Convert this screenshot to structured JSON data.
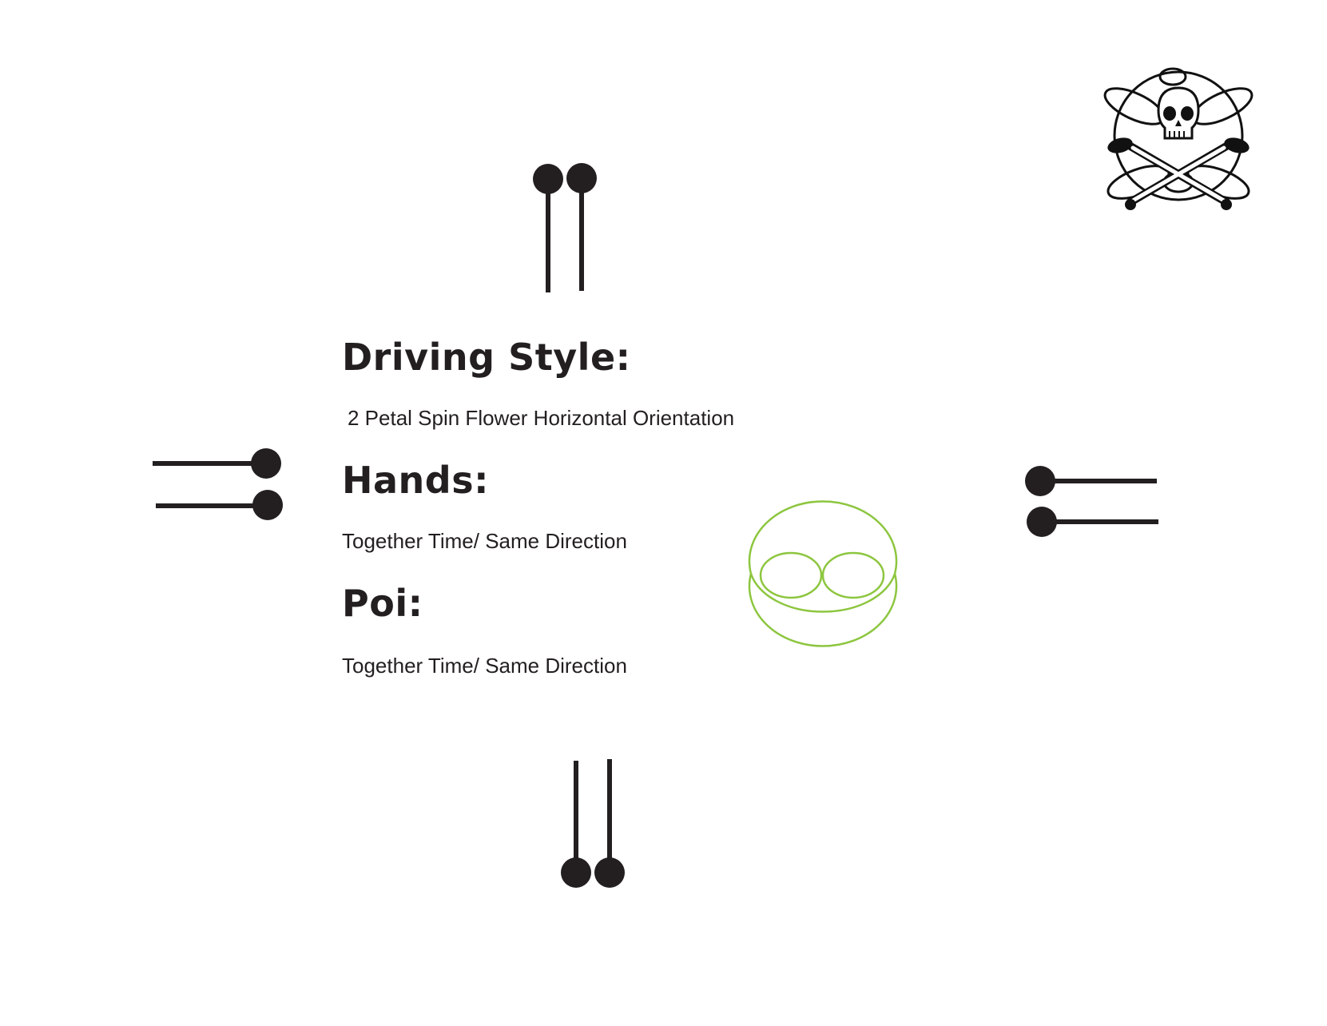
{
  "sections": {
    "driving_style": {
      "heading": "Driving Style:",
      "text": "2 Petal Spin Flower Horizontal Orientation"
    },
    "hands": {
      "heading": "Hands:",
      "text": "Together Time/ Same Direction"
    },
    "poi": {
      "heading": "Poi:",
      "text": "Together Time/ Same Direction"
    }
  },
  "diagram": {
    "poi_positions": [
      "top",
      "left",
      "right",
      "bottom"
    ],
    "flower_color": "#8dc63f",
    "poi_color": "#231f20",
    "petals": 2
  },
  "logo": {
    "icon": "skull-crossbones-poi-emblem"
  }
}
